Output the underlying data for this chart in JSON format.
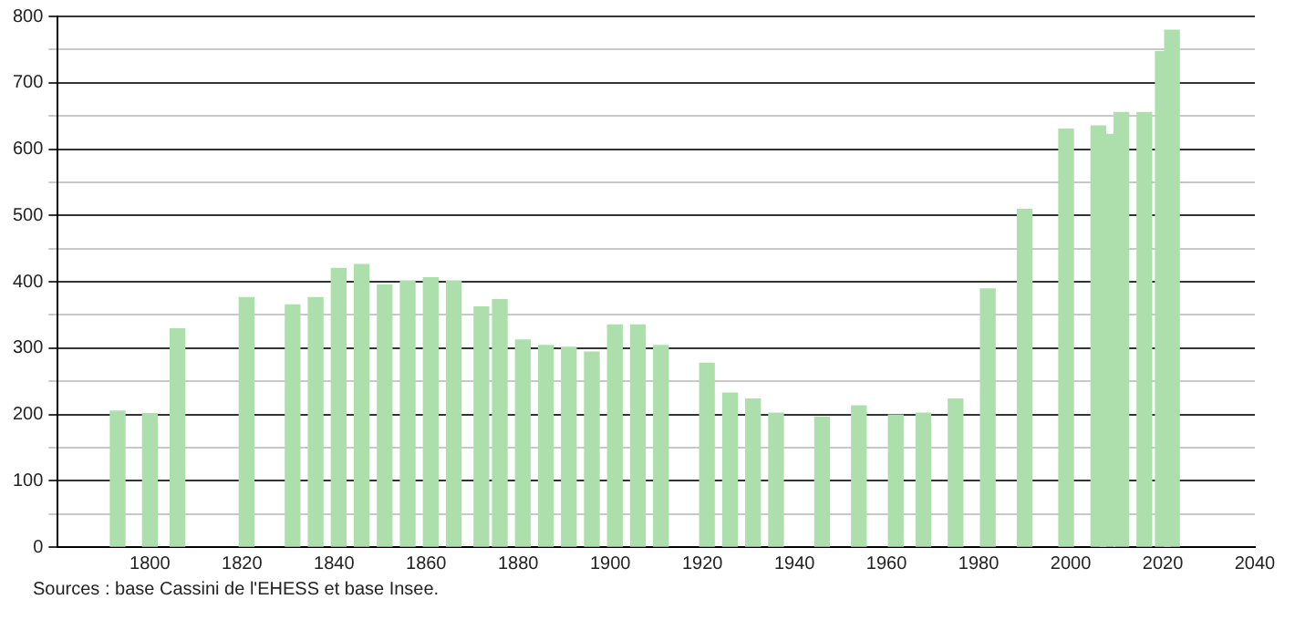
{
  "chart_data": {
    "type": "bar",
    "color": "#addfad",
    "x": [
      1793,
      1800,
      1806,
      1821,
      1831,
      1836,
      1841,
      1846,
      1851,
      1856,
      1861,
      1866,
      1872,
      1876,
      1881,
      1886,
      1891,
      1896,
      1901,
      1906,
      1911,
      1921,
      1926,
      1931,
      1936,
      1946,
      1954,
      1962,
      1968,
      1975,
      1982,
      1990,
      1999,
      2006,
      2008,
      2011,
      2016,
      2020,
      2022
    ],
    "values": [
      205,
      201,
      329,
      376,
      365,
      376,
      420,
      426,
      395,
      401,
      406,
      401,
      362,
      373,
      312,
      304,
      301,
      294,
      335,
      335,
      304,
      277,
      232,
      223,
      202,
      196,
      213,
      199,
      202,
      223,
      389,
      509,
      630,
      635,
      622,
      655,
      655,
      747,
      779
    ],
    "xlim": [
      1780,
      2040
    ],
    "xticks": [
      1800,
      1820,
      1840,
      1860,
      1880,
      1900,
      1920,
      1940,
      1960,
      1980,
      2000,
      2020,
      2040
    ],
    "ylim": [
      0,
      800
    ],
    "yticks": [
      0,
      {
        "value": 50,
        "label": null
      },
      100,
      {
        "value": 150,
        "label": null
      },
      200,
      {
        "value": 250,
        "label": null
      },
      300,
      {
        "value": 350,
        "label": null
      },
      400,
      {
        "value": 450,
        "label": null
      },
      500,
      {
        "value": 550,
        "label": null
      },
      600,
      {
        "value": 650,
        "label": null
      },
      700,
      {
        "value": 750,
        "label": null
      },
      800
    ],
    "grid": "y",
    "legend": false,
    "annotations": [
      "Sources : base Cassini de l'EHESS et base Insee."
    ]
  }
}
